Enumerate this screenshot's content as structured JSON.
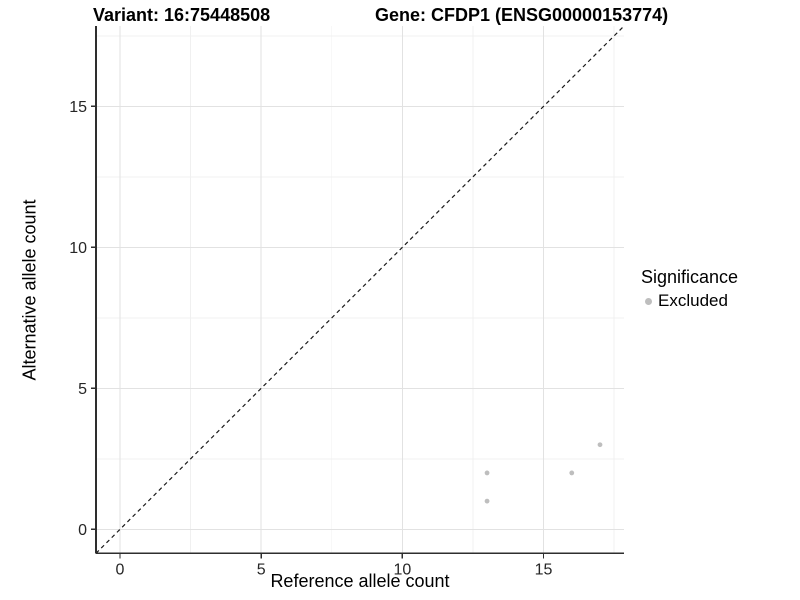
{
  "chart_data": {
    "type": "scatter",
    "title_left": "Variant: 16:75448508",
    "title_right": "Gene: CFDP1 (ENSG00000153774)",
    "xlabel": "Reference allele count",
    "ylabel": "Alternative allele count",
    "xlim": [
      -0.85,
      17.85
    ],
    "ylim": [
      -0.85,
      17.85
    ],
    "x_ticks": [
      0,
      5,
      10,
      15
    ],
    "y_ticks": [
      0,
      5,
      10,
      15
    ],
    "x_minor_ticks": [
      2.5,
      7.5,
      12.5,
      17.5
    ],
    "y_minor_ticks": [
      2.5,
      7.5,
      12.5,
      17.5
    ],
    "grid": "major-and-minor",
    "reference_line": {
      "kind": "identity",
      "slope": 1,
      "intercept": 0,
      "style": "dashed"
    },
    "series": [
      {
        "name": "Excluded",
        "color": "#bebebe",
        "points": [
          [
            13,
            1
          ],
          [
            13,
            2
          ],
          [
            16,
            2
          ],
          [
            17,
            3
          ]
        ]
      }
    ],
    "legend": {
      "title": "Significance",
      "position": "right",
      "items": [
        {
          "label": "Excluded",
          "color": "#bebebe"
        }
      ]
    },
    "colors": {
      "background": "#ffffff",
      "grid_major": "#e2e2e2",
      "grid_minor": "#f0f0f0",
      "axis_line": "#2e2e2e",
      "tick_text": "#262626",
      "reference_line": "#1a1a1a",
      "point": "#bebebe"
    }
  }
}
